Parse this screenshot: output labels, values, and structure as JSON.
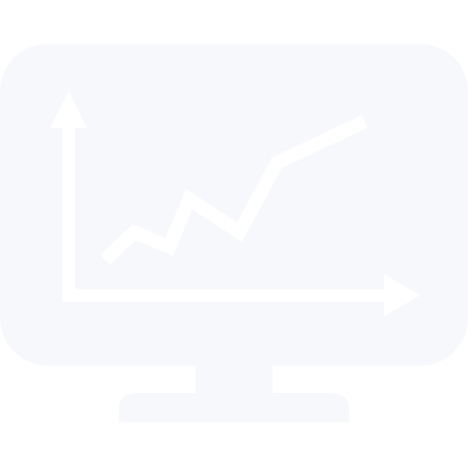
{
  "icon": {
    "name": "monitor-chart-icon",
    "colors": {
      "screen": "#f7f8fc",
      "stand": "#f7f8fc",
      "chart": "#ffffff",
      "background": "#ffffff"
    },
    "chart_glyph": {
      "type": "line",
      "trend": "rising",
      "has_x_axis_arrow": true,
      "has_y_axis_arrow": true
    }
  }
}
